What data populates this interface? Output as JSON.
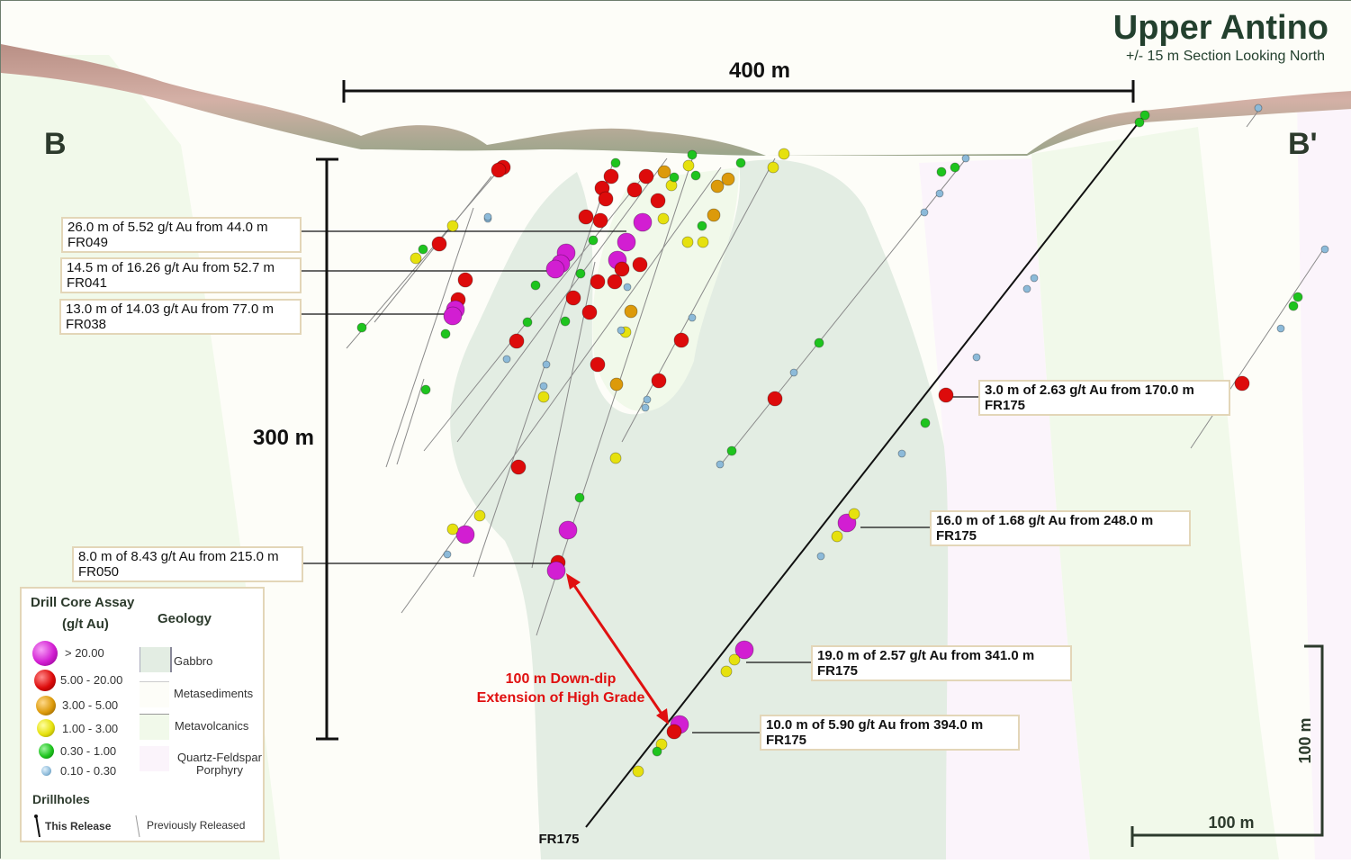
{
  "title": "Upper Antino",
  "subtitle": "+/- 15 m Section Looking North",
  "section_labels": {
    "left": "B",
    "right": "B'"
  },
  "scale_bars": {
    "horizontal": "400 m",
    "vertical": "300 m",
    "corner_vertical": "100 m",
    "corner_horizontal": "100 m"
  },
  "annotation": {
    "line1": "100 m Down-dip",
    "line2": "Extension of High Grade",
    "color": "#e01010"
  },
  "drillhole_label": "FR175",
  "intercepts": [
    {
      "text": "26.0 m of 5.52 g/t Au from 44.0 m",
      "hole": "FR049",
      "release": "previous"
    },
    {
      "text": "14.5 m of 16.26 g/t Au from 52.7 m",
      "hole": "FR041",
      "release": "previous"
    },
    {
      "text": "13.0 m of 14.03 g/t Au from 77.0 m",
      "hole": "FR038",
      "release": "previous"
    },
    {
      "text": "8.0 m of 8.43 g/t Au from 215.0 m",
      "hole": "FR050",
      "release": "previous"
    },
    {
      "text": "3.0 m of 2.63 g/t Au from 170.0 m",
      "hole": "FR175",
      "release": "this"
    },
    {
      "text": "16.0 m of 1.68 g/t Au from 248.0 m",
      "hole": "FR175",
      "release": "this"
    },
    {
      "text": "19.0 m of 2.57 g/t Au from 341.0 m",
      "hole": "FR175",
      "release": "this"
    },
    {
      "text": "10.0 m of 5.90 g/t Au from 394.0 m",
      "hole": "FR175",
      "release": "this"
    }
  ],
  "legend": {
    "assay_title_1": "Drill Core Assay",
    "assay_title_2": "(g/t Au)",
    "assay_classes": [
      {
        "label": "> 20.00",
        "color": "#d21ed2"
      },
      {
        "label": "5.00 - 20.00",
        "color": "#dd0b0b"
      },
      {
        "label": "3.00 - 5.00",
        "color": "#dc9a0a"
      },
      {
        "label": "1.00 - 3.00",
        "color": "#e6e10e"
      },
      {
        "label": "0.30 - 1.00",
        "color": "#1ec41e"
      },
      {
        "label": "0.10 - 0.30",
        "color": "#8cbad9"
      }
    ],
    "geology_title": "Geology",
    "geology": [
      {
        "label": "Gabbro",
        "color": "#e3ede3"
      },
      {
        "label": "Metasediments",
        "color": "#fdfdf8"
      },
      {
        "label": "Metavolcanics",
        "color": "#f1f9ea"
      },
      {
        "label": "Quartz-Feldspar Porphyry",
        "color": "#fbf4fb"
      }
    ],
    "drillholes_title": "Drillholes",
    "this_release": "This Release",
    "previously_released": "Previously Released"
  }
}
